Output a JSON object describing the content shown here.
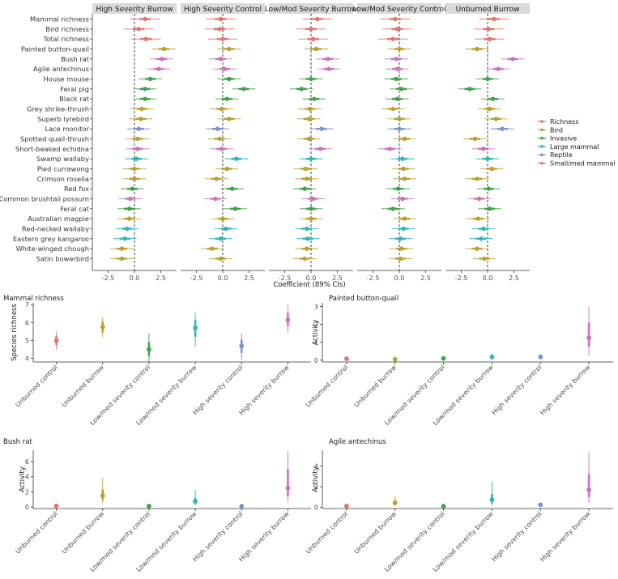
{
  "colors": {
    "Richness": "#E2766F",
    "Bird": "#BBA02E",
    "Invasive": "#3FA24A",
    "Large mammal": "#32B4B8",
    "Reptile": "#7B93CF",
    "Small/med mammal": "#CB72BE",
    "strip_bg": "#D9D9D9",
    "axis": "#333333"
  },
  "chart_data": [
    {
      "type": "forest",
      "xlabel": "Coefficient (89% CIs)",
      "xlim": [
        -4,
        4
      ],
      "xticks": [
        -2.5,
        0.0,
        2.5
      ],
      "xtick_labels": [
        "-2.5",
        "0.0",
        "2.5"
      ],
      "panels": [
        "High Severity Burrow",
        "High Severity Control",
        "Low/Mod Severity Burrow",
        "Low/Mod Severity Control",
        "Unburned Burrow"
      ],
      "legend": [
        "Richness",
        "Bird",
        "Invasive",
        "Large mammal",
        "Reptile",
        "Small/med mammal"
      ],
      "rows": [
        {
          "label": "Mammal richness",
          "group": "Richness",
          "est": [
            1.0,
            -0.2,
            0.6,
            -0.4,
            0.6
          ]
        },
        {
          "label": "Bird richness",
          "group": "Richness",
          "est": [
            0.4,
            -0.3,
            0.0,
            -0.2,
            0.1
          ]
        },
        {
          "label": "Total richness",
          "group": "Richness",
          "est": [
            1.1,
            0.0,
            0.2,
            -0.6,
            0.2
          ]
        },
        {
          "label": "Painted button-quail",
          "group": "Bird",
          "est": [
            2.8,
            0.6,
            0.5,
            0.0,
            -1.0
          ]
        },
        {
          "label": "Bush rat",
          "group": "Small/med mammal",
          "est": [
            2.6,
            -0.2,
            1.6,
            -0.3,
            2.4
          ]
        },
        {
          "label": "Agile antechinus",
          "group": "Small/med mammal",
          "est": [
            2.3,
            0.2,
            1.7,
            -0.2,
            1.0
          ]
        },
        {
          "label": "House mouse",
          "group": "Invasive",
          "est": [
            1.5,
            0.6,
            0.0,
            -0.3,
            0.0
          ]
        },
        {
          "label": "Feral pig",
          "group": "Invasive",
          "est": [
            1.0,
            2.0,
            -0.9,
            0.2,
            -1.7
          ]
        },
        {
          "label": "Black rat",
          "group": "Invasive",
          "est": [
            1.0,
            0.4,
            0.3,
            -0.2,
            0.5
          ]
        },
        {
          "label": "Grey shrike-thrush",
          "group": "Bird",
          "est": [
            0.7,
            -0.1,
            -0.1,
            -0.6,
            0.2
          ]
        },
        {
          "label": "Superb lyrebird",
          "group": "Bird",
          "est": [
            0.6,
            0.6,
            -0.2,
            0.0,
            0.8
          ]
        },
        {
          "label": "Lace monitor",
          "group": "Reptile",
          "est": [
            0.4,
            -0.5,
            1.0,
            0.0,
            1.4
          ]
        },
        {
          "label": "Spotted quail-thrush",
          "group": "Bird",
          "est": [
            0.3,
            -0.3,
            -0.2,
            0.5,
            -1.2
          ]
        },
        {
          "label": "Short-beaked echidna",
          "group": "Small/med mammal",
          "est": [
            0.3,
            -0.1,
            0.9,
            -0.9,
            -0.4
          ]
        },
        {
          "label": "Swamp wallaby",
          "group": "Large mammal",
          "est": [
            0.2,
            1.3,
            0.0,
            0.3,
            0.0
          ]
        },
        {
          "label": "Pied currawong",
          "group": "Bird",
          "est": [
            0.0,
            0.4,
            -0.5,
            0.4,
            0.4
          ]
        },
        {
          "label": "Crimson rosella",
          "group": "Bird",
          "est": [
            0.0,
            -0.6,
            -0.4,
            0.5,
            -1.0
          ]
        },
        {
          "label": "Red fox",
          "group": "Invasive",
          "est": [
            -0.2,
            0.9,
            -0.6,
            -0.1,
            0.1
          ]
        },
        {
          "label": "Common brushtail possum",
          "group": "Small/med mammal",
          "est": [
            -0.4,
            -0.7,
            0.2,
            0.3,
            -0.8
          ]
        },
        {
          "label": "Feral cat",
          "group": "Invasive",
          "est": [
            -0.5,
            1.2,
            0.0,
            -0.6,
            0.2
          ]
        },
        {
          "label": "Australian magpie",
          "group": "Bird",
          "est": [
            -0.5,
            0.0,
            0.0,
            0.5,
            -0.9
          ]
        },
        {
          "label": "Red-necked wallaby",
          "group": "Large mammal",
          "est": [
            -0.7,
            0.3,
            -0.4,
            0.4,
            -0.4
          ]
        },
        {
          "label": "Eastern grey kangaroo",
          "group": "Large mammal",
          "est": [
            -0.9,
            -0.2,
            -0.3,
            0.1,
            -0.6
          ]
        },
        {
          "label": "White-winged chough",
          "group": "Bird",
          "est": [
            -1.2,
            -1.0,
            -0.4,
            0.2,
            -1.0
          ]
        },
        {
          "label": "Satin bowerbird",
          "group": "Bird",
          "est": [
            -1.2,
            -0.2,
            -0.6,
            0.1,
            -0.3
          ]
        }
      ]
    },
    {
      "type": "pointrange",
      "title": "Mammal richness",
      "ylabel": "Species richness",
      "ylim": [
        3.8,
        7.1
      ],
      "yticks": [
        4,
        5,
        6,
        7
      ],
      "categories": [
        "Unburned control",
        "Unburned burrow",
        "Low/mod severity control",
        "Low/mod severity burrow",
        "High severity control",
        "High severity burrow"
      ],
      "points": [
        {
          "est": 5.0,
          "inner": [
            4.75,
            5.25
          ],
          "outer": [
            4.5,
            5.5
          ]
        },
        {
          "est": 5.75,
          "inner": [
            5.45,
            6.05
          ],
          "outer": [
            5.2,
            6.3
          ]
        },
        {
          "est": 4.5,
          "inner": [
            4.15,
            4.9
          ],
          "outer": [
            3.8,
            5.4
          ]
        },
        {
          "est": 5.7,
          "inner": [
            5.2,
            6.15
          ],
          "outer": [
            4.65,
            6.55
          ]
        },
        {
          "est": 4.7,
          "inner": [
            4.3,
            5.05
          ],
          "outer": [
            3.9,
            5.4
          ]
        },
        {
          "est": 6.15,
          "inner": [
            5.8,
            6.55
          ],
          "outer": [
            5.45,
            7.0
          ]
        }
      ]
    },
    {
      "type": "pointrange",
      "title": "Painted button-quail",
      "ylabel": "Activity",
      "ylim": [
        -0.1,
        3.2
      ],
      "yticks": [
        0,
        1,
        2,
        3
      ],
      "categories": [
        "Unburned control",
        "Unburned burrow",
        "Low/mod severity control",
        "Low/mod severity burrow",
        "High severity control",
        "High severity burrow"
      ],
      "points": [
        {
          "est": 0.08,
          "inner": [
            0.04,
            0.12
          ],
          "outer": [
            0.02,
            0.16
          ]
        },
        {
          "est": 0.05,
          "inner": [
            0.02,
            0.08
          ],
          "outer": [
            0.0,
            0.12
          ]
        },
        {
          "est": 0.1,
          "inner": [
            0.05,
            0.15
          ],
          "outer": [
            0.02,
            0.2
          ]
        },
        {
          "est": 0.18,
          "inner": [
            0.1,
            0.28
          ],
          "outer": [
            0.04,
            0.4
          ]
        },
        {
          "est": 0.18,
          "inner": [
            0.1,
            0.27
          ],
          "outer": [
            0.04,
            0.36
          ]
        },
        {
          "est": 1.25,
          "inner": [
            0.75,
            2.1
          ],
          "outer": [
            0.25,
            3.0
          ]
        }
      ]
    },
    {
      "type": "pointrange",
      "title": "Bush rat",
      "ylabel": "Activity",
      "ylim": [
        -0.2,
        7.5
      ],
      "yticks": [
        0,
        2,
        4,
        6
      ],
      "categories": [
        "Unburned control",
        "Unburned burrow",
        "Low/mod severity control",
        "Low/mod severity burrow",
        "High severity control",
        "High severity burrow"
      ],
      "points": [
        {
          "est": 0.15,
          "inner": [
            0.08,
            0.22
          ],
          "outer": [
            0.03,
            0.3
          ]
        },
        {
          "est": 1.5,
          "inner": [
            0.95,
            2.3
          ],
          "outer": [
            0.5,
            3.8
          ]
        },
        {
          "est": 0.12,
          "inner": [
            0.06,
            0.18
          ],
          "outer": [
            0.02,
            0.25
          ]
        },
        {
          "est": 0.75,
          "inner": [
            0.45,
            1.2
          ],
          "outer": [
            0.2,
            2.3
          ]
        },
        {
          "est": 0.12,
          "inner": [
            0.06,
            0.18
          ],
          "outer": [
            0.02,
            0.25
          ]
        },
        {
          "est": 2.5,
          "inner": [
            1.4,
            5.0
          ],
          "outer": [
            0.6,
            7.4
          ]
        }
      ]
    },
    {
      "type": "pointrange",
      "title": "Agile antechinus",
      "ylabel": "Activity",
      "ylim": [
        -0.1,
        5.5
      ],
      "yticks": [
        0,
        2,
        4
      ],
      "categories": [
        "Unburned control",
        "Unburned burrow",
        "Low/mod severity control",
        "Low/mod severity burrow",
        "High severity control",
        "High severity burrow"
      ],
      "points": [
        {
          "est": 0.15,
          "inner": [
            0.08,
            0.22
          ],
          "outer": [
            0.03,
            0.3
          ]
        },
        {
          "est": 0.45,
          "inner": [
            0.28,
            0.7
          ],
          "outer": [
            0.12,
            1.05
          ]
        },
        {
          "est": 0.12,
          "inner": [
            0.06,
            0.2
          ],
          "outer": [
            0.02,
            0.28
          ]
        },
        {
          "est": 0.75,
          "inner": [
            0.4,
            1.3
          ],
          "outer": [
            0.15,
            2.5
          ]
        },
        {
          "est": 0.25,
          "inner": [
            0.15,
            0.38
          ],
          "outer": [
            0.05,
            0.55
          ]
        },
        {
          "est": 1.7,
          "inner": [
            1.0,
            3.2
          ],
          "outer": [
            0.45,
            5.3
          ]
        }
      ]
    }
  ]
}
